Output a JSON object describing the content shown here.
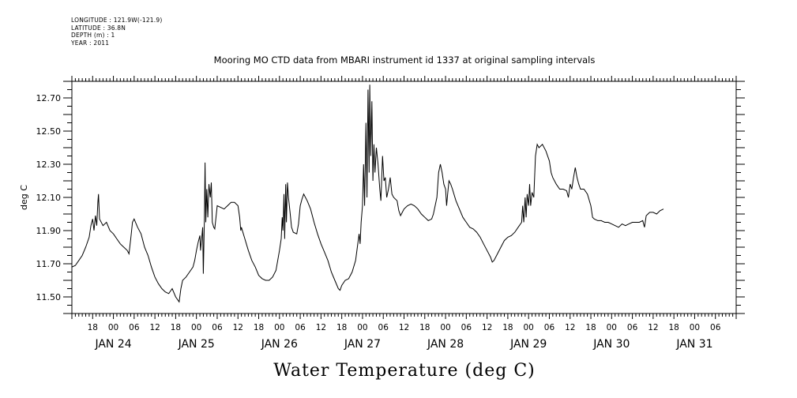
{
  "header": {
    "longitude": "LONGITUDE : 121.9W(-121.9)",
    "latitude": "LATITUDE : 36.8N",
    "depth": "DEPTH (m) : 1",
    "year": "YEAR : 2011"
  },
  "chart_data": {
    "type": "line",
    "title": "Mooring MO CTD data from MBARI instrument id 1337 at original sampling intervals",
    "xlabel": "Water Temperature (deg C)",
    "ylabel": "deg C",
    "x_unit": "hours since Jan 24 00:00 (2011)",
    "xlim": [
      12,
      204
    ],
    "ylim": [
      11.4,
      12.8
    ],
    "y_ticks": [
      11.5,
      11.7,
      11.9,
      12.1,
      12.3,
      12.5,
      12.7
    ],
    "y_tick_labels": [
      "11.50",
      "11.70",
      "11.90",
      "12.10",
      "12.30",
      "12.50",
      "12.70"
    ],
    "hour_ticks": [
      18,
      24,
      30,
      36,
      42,
      48,
      54,
      60,
      66,
      72,
      78,
      84,
      90,
      96,
      102,
      108,
      114,
      120,
      126,
      132,
      138,
      144,
      150,
      156,
      162,
      168,
      174,
      180,
      186,
      192,
      198
    ],
    "hour_tick_labels": [
      "18",
      "00",
      "06",
      "12",
      "18",
      "00",
      "06",
      "12",
      "18",
      "00",
      "06",
      "12",
      "18",
      "00",
      "06",
      "12",
      "18",
      "00",
      "06",
      "12",
      "18",
      "00",
      "06",
      "12",
      "18",
      "00",
      "06",
      "12",
      "18",
      "00",
      "06"
    ],
    "day_labels": [
      {
        "x": 24,
        "label": "JAN 24"
      },
      {
        "x": 48,
        "label": "JAN 25"
      },
      {
        "x": 72,
        "label": "JAN 26"
      },
      {
        "x": 96,
        "label": "JAN 27"
      },
      {
        "x": 120,
        "label": "JAN 28"
      },
      {
        "x": 144,
        "label": "JAN 29"
      },
      {
        "x": 168,
        "label": "JAN 30"
      },
      {
        "x": 192,
        "label": "JAN 31"
      }
    ],
    "series": [
      {
        "color": "#000000",
        "points": [
          [
            12,
            11.68
          ],
          [
            13,
            11.69
          ],
          [
            14,
            11.72
          ],
          [
            15,
            11.75
          ],
          [
            16,
            11.8
          ],
          [
            17,
            11.86
          ],
          [
            17.5,
            11.93
          ],
          [
            18,
            11.97
          ],
          [
            18.4,
            11.9
          ],
          [
            18.8,
            11.99
          ],
          [
            19.2,
            11.93
          ],
          [
            19.5,
            12.07
          ],
          [
            19.7,
            12.12
          ],
          [
            20,
            11.97
          ],
          [
            21,
            11.93
          ],
          [
            22,
            11.95
          ],
          [
            23,
            11.9
          ],
          [
            24,
            11.88
          ],
          [
            25,
            11.85
          ],
          [
            26,
            11.82
          ],
          [
            27,
            11.8
          ],
          [
            28,
            11.78
          ],
          [
            28.5,
            11.76
          ],
          [
            29,
            11.85
          ],
          [
            29.5,
            11.95
          ],
          [
            30,
            11.97
          ],
          [
            31,
            11.92
          ],
          [
            32,
            11.88
          ],
          [
            33,
            11.8
          ],
          [
            34,
            11.75
          ],
          [
            35,
            11.68
          ],
          [
            36,
            11.62
          ],
          [
            37,
            11.58
          ],
          [
            38,
            11.55
          ],
          [
            39,
            11.53
          ],
          [
            40,
            11.52
          ],
          [
            41,
            11.55
          ],
          [
            42,
            11.5
          ],
          [
            43,
            11.47
          ],
          [
            43.5,
            11.55
          ],
          [
            44,
            11.6
          ],
          [
            45,
            11.62
          ],
          [
            46,
            11.65
          ],
          [
            47,
            11.68
          ],
          [
            47.5,
            11.72
          ],
          [
            48,
            11.78
          ],
          [
            48.5,
            11.83
          ],
          [
            49,
            11.87
          ],
          [
            49.2,
            11.78
          ],
          [
            49.5,
            11.85
          ],
          [
            49.8,
            11.92
          ],
          [
            50,
            11.64
          ],
          [
            50.3,
            11.98
          ],
          [
            50.5,
            12.31
          ],
          [
            50.7,
            11.95
          ],
          [
            51,
            12.15
          ],
          [
            51.3,
            11.98
          ],
          [
            51.6,
            12.18
          ],
          [
            52,
            12.1
          ],
          [
            52.3,
            12.19
          ],
          [
            52.6,
            11.95
          ],
          [
            53,
            11.92
          ],
          [
            53.3,
            11.91
          ],
          [
            54,
            12.05
          ],
          [
            55,
            12.04
          ],
          [
            56,
            12.03
          ],
          [
            57,
            12.05
          ],
          [
            58,
            12.07
          ],
          [
            59,
            12.07
          ],
          [
            60,
            12.05
          ],
          [
            60.5,
            11.98
          ],
          [
            60.8,
            11.9
          ],
          [
            61,
            11.92
          ],
          [
            62,
            11.85
          ],
          [
            63,
            11.78
          ],
          [
            64,
            11.72
          ],
          [
            65,
            11.68
          ],
          [
            66,
            11.63
          ],
          [
            67,
            11.61
          ],
          [
            68,
            11.6
          ],
          [
            69,
            11.6
          ],
          [
            70,
            11.62
          ],
          [
            71,
            11.66
          ],
          [
            71.5,
            11.72
          ],
          [
            72,
            11.78
          ],
          [
            72.5,
            11.85
          ],
          [
            72.8,
            11.98
          ],
          [
            73,
            11.9
          ],
          [
            73.3,
            12.12
          ],
          [
            73.5,
            11.85
          ],
          [
            73.8,
            12.18
          ],
          [
            74,
            11.95
          ],
          [
            74.3,
            12.19
          ],
          [
            74.6,
            12.1
          ],
          [
            75,
            12.02
          ],
          [
            75.5,
            11.92
          ],
          [
            76,
            11.89
          ],
          [
            77,
            11.88
          ],
          [
            77.5,
            11.94
          ],
          [
            78,
            12.05
          ],
          [
            78.5,
            12.09
          ],
          [
            79,
            12.12
          ],
          [
            80,
            12.08
          ],
          [
            81,
            12.03
          ],
          [
            82,
            11.95
          ],
          [
            83,
            11.88
          ],
          [
            84,
            11.82
          ],
          [
            85,
            11.77
          ],
          [
            86,
            11.72
          ],
          [
            87,
            11.65
          ],
          [
            88,
            11.6
          ],
          [
            89,
            11.55
          ],
          [
            89.5,
            11.54
          ],
          [
            90,
            11.57
          ],
          [
            91,
            11.6
          ],
          [
            92,
            11.61
          ],
          [
            93,
            11.65
          ],
          [
            94,
            11.72
          ],
          [
            94.5,
            11.8
          ],
          [
            95,
            11.88
          ],
          [
            95.3,
            11.82
          ],
          [
            95.6,
            11.95
          ],
          [
            96,
            12.05
          ],
          [
            96.3,
            12.3
          ],
          [
            96.6,
            12.05
          ],
          [
            97,
            12.55
          ],
          [
            97.3,
            12.1
          ],
          [
            97.6,
            12.75
          ],
          [
            97.9,
            12.25
          ],
          [
            98.1,
            12.78
          ],
          [
            98.4,
            12.35
          ],
          [
            98.7,
            12.68
          ],
          [
            99,
            12.2
          ],
          [
            99.3,
            12.42
          ],
          [
            99.6,
            12.25
          ],
          [
            100,
            12.4
          ],
          [
            100.5,
            12.3
          ],
          [
            101,
            12.15
          ],
          [
            101.3,
            12.08
          ],
          [
            101.8,
            12.35
          ],
          [
            102.2,
            12.2
          ],
          [
            102.6,
            12.22
          ],
          [
            103,
            12.1
          ],
          [
            103.5,
            12.15
          ],
          [
            104,
            12.22
          ],
          [
            104.5,
            12.12
          ],
          [
            105,
            12.1
          ],
          [
            106,
            12.08
          ],
          [
            106.5,
            12.02
          ],
          [
            107,
            11.99
          ],
          [
            108,
            12.03
          ],
          [
            109,
            12.05
          ],
          [
            110,
            12.06
          ],
          [
            111,
            12.05
          ],
          [
            112,
            12.03
          ],
          [
            113,
            12.0
          ],
          [
            114,
            11.98
          ],
          [
            115,
            11.96
          ],
          [
            116,
            11.97
          ],
          [
            116.5,
            12.0
          ],
          [
            117,
            12.05
          ],
          [
            117.5,
            12.1
          ],
          [
            118,
            12.25
          ],
          [
            118.5,
            12.3
          ],
          [
            119,
            12.25
          ],
          [
            119.5,
            12.18
          ],
          [
            120,
            12.15
          ],
          [
            120.3,
            12.05
          ],
          [
            120.6,
            12.12
          ],
          [
            121,
            12.2
          ],
          [
            121.5,
            12.18
          ],
          [
            122,
            12.15
          ],
          [
            123,
            12.08
          ],
          [
            124,
            12.03
          ],
          [
            125,
            11.98
          ],
          [
            126,
            11.95
          ],
          [
            127,
            11.92
          ],
          [
            128,
            11.91
          ],
          [
            129,
            11.89
          ],
          [
            130,
            11.86
          ],
          [
            131,
            11.82
          ],
          [
            132,
            11.78
          ],
          [
            133,
            11.74
          ],
          [
            133.5,
            11.71
          ],
          [
            134,
            11.72
          ],
          [
            135,
            11.76
          ],
          [
            136,
            11.8
          ],
          [
            137,
            11.84
          ],
          [
            138,
            11.86
          ],
          [
            139,
            11.87
          ],
          [
            140,
            11.89
          ],
          [
            141,
            11.92
          ],
          [
            142,
            11.95
          ],
          [
            142.3,
            12.05
          ],
          [
            142.6,
            11.95
          ],
          [
            143,
            12.1
          ],
          [
            143.3,
            11.98
          ],
          [
            143.6,
            12.12
          ],
          [
            144,
            12.05
          ],
          [
            144.3,
            12.18
          ],
          [
            144.6,
            12.05
          ],
          [
            145,
            12.13
          ],
          [
            145.5,
            12.1
          ],
          [
            146,
            12.35
          ],
          [
            146.5,
            12.42
          ],
          [
            147,
            12.4
          ],
          [
            148,
            12.42
          ],
          [
            149,
            12.38
          ],
          [
            150,
            12.32
          ],
          [
            150.5,
            12.25
          ],
          [
            151,
            12.22
          ],
          [
            152,
            12.18
          ],
          [
            153,
            12.15
          ],
          [
            154,
            12.15
          ],
          [
            155,
            12.14
          ],
          [
            155.5,
            12.1
          ],
          [
            156,
            12.18
          ],
          [
            156.5,
            12.15
          ],
          [
            157,
            12.22
          ],
          [
            157.5,
            12.28
          ],
          [
            158,
            12.22
          ],
          [
            158.5,
            12.18
          ],
          [
            159,
            12.15
          ],
          [
            160,
            12.15
          ],
          [
            161,
            12.12
          ],
          [
            162,
            12.05
          ],
          [
            162.5,
            11.98
          ],
          [
            163,
            11.97
          ],
          [
            164,
            11.96
          ],
          [
            165,
            11.96
          ],
          [
            166,
            11.95
          ],
          [
            167,
            11.95
          ],
          [
            168,
            11.94
          ],
          [
            169,
            11.93
          ],
          [
            170,
            11.92
          ],
          [
            171,
            11.94
          ],
          [
            172,
            11.93
          ],
          [
            173,
            11.94
          ],
          [
            174,
            11.95
          ],
          [
            175,
            11.95
          ],
          [
            176,
            11.95
          ],
          [
            177,
            11.96
          ],
          [
            177.5,
            11.92
          ],
          [
            178,
            11.99
          ],
          [
            178.5,
            12.0
          ],
          [
            179,
            12.01
          ],
          [
            180,
            12.01
          ],
          [
            181,
            12.0
          ],
          [
            182,
            12.02
          ],
          [
            183,
            12.03
          ]
        ]
      }
    ]
  }
}
